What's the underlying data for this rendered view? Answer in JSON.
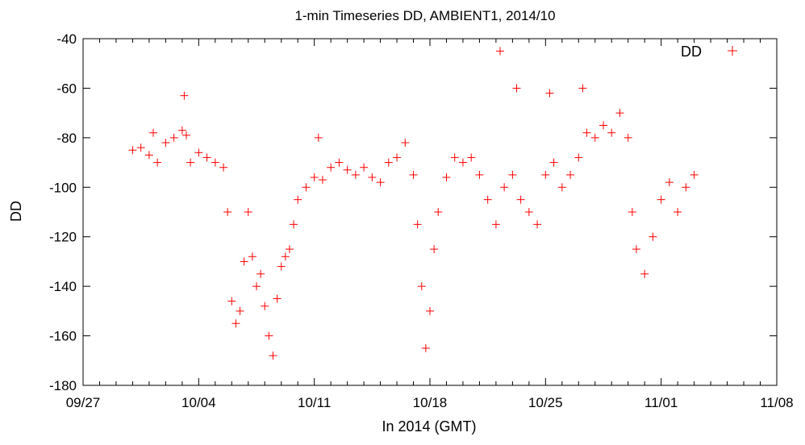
{
  "chart_data": {
    "type": "scatter",
    "title": "1-min Timeseries DD, AMBIENT1, 2014/10",
    "xlabel": "In 2014 (GMT)",
    "ylabel": "DD",
    "ylim": [
      -180,
      -40
    ],
    "xlim": [
      "2014-09-27",
      "2014-11-08"
    ],
    "x_tick_labels": [
      "09/27",
      "10/04",
      "10/11",
      "10/18",
      "10/25",
      "11/01",
      "11/08"
    ],
    "y_tick_labels": [
      "-40",
      "-60",
      "-80",
      "-100",
      "-120",
      "-140",
      "-160",
      "-180"
    ],
    "y_ticks": [
      -40,
      -60,
      -80,
      -100,
      -120,
      -140,
      -160,
      -180
    ],
    "grid": false,
    "legend_position": "top-right",
    "marker": "+",
    "series": [
      {
        "name": "DD",
        "color": "#ff0000",
        "points": [
          [
            "2014-09-30T00:00",
            -85
          ],
          [
            "2014-09-30T12:00",
            -84
          ],
          [
            "2014-10-01T00:00",
            -87
          ],
          [
            "2014-10-01T06:00",
            -78
          ],
          [
            "2014-10-01T12:00",
            -90
          ],
          [
            "2014-10-02T00:00",
            -82
          ],
          [
            "2014-10-02T12:00",
            -80
          ],
          [
            "2014-10-03T00:00",
            -77
          ],
          [
            "2014-10-03T03:00",
            -63
          ],
          [
            "2014-10-03T06:00",
            -79
          ],
          [
            "2014-10-03T12:00",
            -90
          ],
          [
            "2014-10-04T00:00",
            -86
          ],
          [
            "2014-10-04T12:00",
            -88
          ],
          [
            "2014-10-05T00:00",
            -90
          ],
          [
            "2014-10-05T12:00",
            -92
          ],
          [
            "2014-10-05T18:00",
            -110
          ],
          [
            "2014-10-06T00:00",
            -146
          ],
          [
            "2014-10-06T06:00",
            -155
          ],
          [
            "2014-10-06T12:00",
            -150
          ],
          [
            "2014-10-06T18:00",
            -130
          ],
          [
            "2014-10-07T00:00",
            -110
          ],
          [
            "2014-10-07T06:00",
            -128
          ],
          [
            "2014-10-07T12:00",
            -140
          ],
          [
            "2014-10-07T18:00",
            -135
          ],
          [
            "2014-10-08T00:00",
            -148
          ],
          [
            "2014-10-08T06:00",
            -160
          ],
          [
            "2014-10-08T12:00",
            -168
          ],
          [
            "2014-10-08T18:00",
            -145
          ],
          [
            "2014-10-09T00:00",
            -132
          ],
          [
            "2014-10-09T06:00",
            -128
          ],
          [
            "2014-10-09T12:00",
            -125
          ],
          [
            "2014-10-09T18:00",
            -115
          ],
          [
            "2014-10-10T00:00",
            -105
          ],
          [
            "2014-10-10T12:00",
            -100
          ],
          [
            "2014-10-11T00:00",
            -96
          ],
          [
            "2014-10-11T06:00",
            -80
          ],
          [
            "2014-10-11T12:00",
            -97
          ],
          [
            "2014-10-12T00:00",
            -92
          ],
          [
            "2014-10-12T12:00",
            -90
          ],
          [
            "2014-10-13T00:00",
            -93
          ],
          [
            "2014-10-13T12:00",
            -95
          ],
          [
            "2014-10-14T00:00",
            -92
          ],
          [
            "2014-10-14T12:00",
            -96
          ],
          [
            "2014-10-15T00:00",
            -98
          ],
          [
            "2014-10-15T12:00",
            -90
          ],
          [
            "2014-10-16T00:00",
            -88
          ],
          [
            "2014-10-16T12:00",
            -82
          ],
          [
            "2014-10-17T00:00",
            -95
          ],
          [
            "2014-10-17T06:00",
            -115
          ],
          [
            "2014-10-17T12:00",
            -140
          ],
          [
            "2014-10-17T18:00",
            -165
          ],
          [
            "2014-10-18T00:00",
            -150
          ],
          [
            "2014-10-18T06:00",
            -125
          ],
          [
            "2014-10-18T12:00",
            -110
          ],
          [
            "2014-10-19T00:00",
            -96
          ],
          [
            "2014-10-19T12:00",
            -88
          ],
          [
            "2014-10-20T00:00",
            -90
          ],
          [
            "2014-10-20T12:00",
            -88
          ],
          [
            "2014-10-21T00:00",
            -95
          ],
          [
            "2014-10-21T12:00",
            -105
          ],
          [
            "2014-10-22T00:00",
            -115
          ],
          [
            "2014-10-22T06:00",
            -45
          ],
          [
            "2014-10-22T12:00",
            -100
          ],
          [
            "2014-10-23T00:00",
            -95
          ],
          [
            "2014-10-23T06:00",
            -60
          ],
          [
            "2014-10-23T12:00",
            -105
          ],
          [
            "2014-10-24T00:00",
            -110
          ],
          [
            "2014-10-24T12:00",
            -115
          ],
          [
            "2014-10-25T00:00",
            -95
          ],
          [
            "2014-10-25T06:00",
            -62
          ],
          [
            "2014-10-25T12:00",
            -90
          ],
          [
            "2014-10-26T00:00",
            -100
          ],
          [
            "2014-10-26T12:00",
            -95
          ],
          [
            "2014-10-27T00:00",
            -88
          ],
          [
            "2014-10-27T06:00",
            -60
          ],
          [
            "2014-10-27T12:00",
            -78
          ],
          [
            "2014-10-28T00:00",
            -80
          ],
          [
            "2014-10-28T12:00",
            -75
          ],
          [
            "2014-10-29T00:00",
            -78
          ],
          [
            "2014-10-29T12:00",
            -70
          ],
          [
            "2014-10-30T00:00",
            -80
          ],
          [
            "2014-10-30T06:00",
            -110
          ],
          [
            "2014-10-30T12:00",
            -125
          ],
          [
            "2014-10-31T00:00",
            -135
          ],
          [
            "2014-10-31T12:00",
            -120
          ],
          [
            "2014-11-01T00:00",
            -105
          ],
          [
            "2014-11-01T12:00",
            -98
          ],
          [
            "2014-11-02T00:00",
            -110
          ],
          [
            "2014-11-02T12:00",
            -100
          ],
          [
            "2014-11-03T00:00",
            -95
          ]
        ]
      }
    ]
  }
}
